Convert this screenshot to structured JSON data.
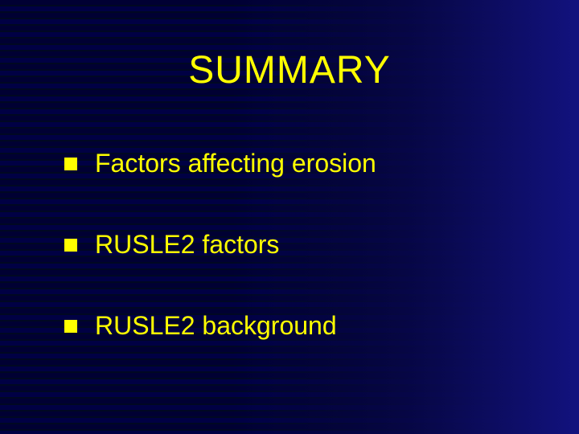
{
  "slide": {
    "title": "SUMMARY",
    "title_color": "#ffff00",
    "title_fontsize": 48,
    "bullets": [
      {
        "text": "Factors affecting erosion"
      },
      {
        "text": "RUSLE2 factors"
      },
      {
        "text": "RUSLE2 background"
      }
    ],
    "bullet_text_color": "#ffff00",
    "bullet_marker_color": "#ffff00",
    "bullet_fontsize": 32,
    "background": {
      "base_color": "#000000",
      "stripe_dark": "#000822",
      "stripe_mid": "#000033",
      "stripe_light": "#000044",
      "gradient_right": "#1414a0"
    }
  }
}
